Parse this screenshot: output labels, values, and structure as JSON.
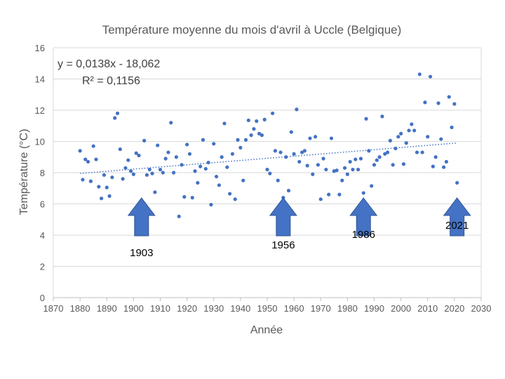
{
  "chart_data": {
    "type": "scatter",
    "title": "Température moyenne du mois d'avril à Uccle (Belgique)",
    "xlabel": "Année",
    "ylabel": "Température (°C)",
    "xlim": [
      1870,
      2030
    ],
    "ylim": [
      0,
      16
    ],
    "xticks": [
      "1870",
      "1880",
      "1890",
      "1900",
      "1910",
      "1920",
      "1930",
      "1940",
      "1950",
      "1960",
      "1970",
      "1980",
      "1990",
      "2000",
      "2010",
      "2020",
      "2030"
    ],
    "yticks": [
      "0",
      "2",
      "4",
      "6",
      "8",
      "10",
      "12",
      "14",
      "16"
    ],
    "grid": "horizontal",
    "marker_color": "#4472C4",
    "trendline": {
      "style": "dotted",
      "equation": "y = 0,0138x - 18,062",
      "r_squared": "R² = 0,1156",
      "x_range": [
        1880,
        2021
      ],
      "y_values": [
        7.95,
        9.9
      ]
    },
    "annotations": [
      {
        "label": "1903",
        "x": 1903
      },
      {
        "label": "1956",
        "x": 1956
      },
      {
        "label": "1986",
        "x": 1986
      },
      {
        "label": "2021",
        "x": 2021
      }
    ],
    "series": [
      {
        "points": [
          [
            1880,
            9.4
          ],
          [
            1881,
            7.55
          ],
          [
            1882,
            8.85
          ],
          [
            1883,
            8.7
          ],
          [
            1884,
            7.45
          ],
          [
            1885,
            9.7
          ],
          [
            1886,
            8.85
          ],
          [
            1887,
            7.1
          ],
          [
            1888,
            6.35
          ],
          [
            1889,
            7.85
          ],
          [
            1890,
            7.05
          ],
          [
            1891,
            6.5
          ],
          [
            1892,
            7.7
          ],
          [
            1893,
            11.5
          ],
          [
            1894,
            11.8
          ],
          [
            1895,
            9.5
          ],
          [
            1896,
            7.6
          ],
          [
            1897,
            8.3
          ],
          [
            1898,
            8.8
          ],
          [
            1899,
            8.1
          ],
          [
            1900,
            7.9
          ],
          [
            1901,
            9.25
          ],
          [
            1902,
            9.1
          ],
          [
            1903,
            5.6
          ],
          [
            1904,
            10.05
          ],
          [
            1905,
            7.85
          ],
          [
            1906,
            8.2
          ],
          [
            1907,
            7.95
          ],
          [
            1908,
            6.75
          ],
          [
            1909,
            9.75
          ],
          [
            1910,
            8.2
          ],
          [
            1911,
            8.0
          ],
          [
            1912,
            8.9
          ],
          [
            1913,
            9.3
          ],
          [
            1914,
            11.2
          ],
          [
            1915,
            8.0
          ],
          [
            1916,
            9.0
          ],
          [
            1917,
            5.2
          ],
          [
            1918,
            8.5
          ],
          [
            1919,
            6.45
          ],
          [
            1920,
            9.8
          ],
          [
            1921,
            9.2
          ],
          [
            1922,
            6.4
          ],
          [
            1923,
            8.1
          ],
          [
            1924,
            7.35
          ],
          [
            1925,
            8.4
          ],
          [
            1926,
            10.1
          ],
          [
            1927,
            8.25
          ],
          [
            1928,
            8.65
          ],
          [
            1929,
            5.95
          ],
          [
            1930,
            9.85
          ],
          [
            1931,
            7.75
          ],
          [
            1932,
            7.2
          ],
          [
            1933,
            9.0
          ],
          [
            1934,
            11.15
          ],
          [
            1935,
            8.35
          ],
          [
            1936,
            6.65
          ],
          [
            1937,
            9.2
          ],
          [
            1938,
            6.3
          ],
          [
            1939,
            10.1
          ],
          [
            1940,
            9.6
          ],
          [
            1941,
            7.5
          ],
          [
            1942,
            10.1
          ],
          [
            1943,
            11.35
          ],
          [
            1944,
            10.4
          ],
          [
            1945,
            10.8
          ],
          [
            1946,
            11.3
          ],
          [
            1947,
            10.5
          ],
          [
            1948,
            10.4
          ],
          [
            1949,
            11.4
          ],
          [
            1950,
            8.2
          ],
          [
            1951,
            7.95
          ],
          [
            1952,
            11.8
          ],
          [
            1953,
            9.4
          ],
          [
            1954,
            7.5
          ],
          [
            1955,
            9.3
          ],
          [
            1956,
            6.4
          ],
          [
            1957,
            9.0
          ],
          [
            1958,
            6.85
          ],
          [
            1959,
            10.6
          ],
          [
            1960,
            9.2
          ],
          [
            1961,
            12.05
          ],
          [
            1962,
            8.7
          ],
          [
            1963,
            9.3
          ],
          [
            1964,
            9.4
          ],
          [
            1965,
            8.45
          ],
          [
            1966,
            10.2
          ],
          [
            1967,
            7.9
          ],
          [
            1968,
            10.3
          ],
          [
            1969,
            8.5
          ],
          [
            1970,
            6.3
          ],
          [
            1971,
            8.9
          ],
          [
            1972,
            8.2
          ],
          [
            1973,
            6.6
          ],
          [
            1974,
            10.2
          ],
          [
            1975,
            8.1
          ],
          [
            1976,
            8.15
          ],
          [
            1977,
            6.6
          ],
          [
            1978,
            7.5
          ],
          [
            1979,
            8.3
          ],
          [
            1980,
            7.9
          ],
          [
            1981,
            8.7
          ],
          [
            1982,
            8.2
          ],
          [
            1983,
            8.85
          ],
          [
            1984,
            8.2
          ],
          [
            1985,
            8.9
          ],
          [
            1986,
            6.7
          ],
          [
            1987,
            11.45
          ],
          [
            1988,
            9.4
          ],
          [
            1989,
            7.15
          ],
          [
            1990,
            8.5
          ],
          [
            1991,
            8.8
          ],
          [
            1992,
            9.0
          ],
          [
            1993,
            11.6
          ],
          [
            1994,
            9.2
          ],
          [
            1995,
            9.3
          ],
          [
            1996,
            10.05
          ],
          [
            1997,
            8.5
          ],
          [
            1998,
            9.55
          ],
          [
            1999,
            10.3
          ],
          [
            2000,
            10.5
          ],
          [
            2001,
            8.55
          ],
          [
            2002,
            9.9
          ],
          [
            2003,
            10.7
          ],
          [
            2004,
            11.1
          ],
          [
            2005,
            10.7
          ],
          [
            2006,
            9.3
          ],
          [
            2007,
            14.3
          ],
          [
            2008,
            9.3
          ],
          [
            2009,
            12.5
          ],
          [
            2010,
            10.3
          ],
          [
            2011,
            14.15
          ],
          [
            2012,
            8.4
          ],
          [
            2013,
            9.0
          ],
          [
            2014,
            12.45
          ],
          [
            2015,
            10.15
          ],
          [
            2016,
            8.35
          ],
          [
            2017,
            8.7
          ],
          [
            2018,
            12.85
          ],
          [
            2019,
            10.9
          ],
          [
            2020,
            12.4
          ],
          [
            2021,
            7.35
          ]
        ]
      }
    ]
  }
}
